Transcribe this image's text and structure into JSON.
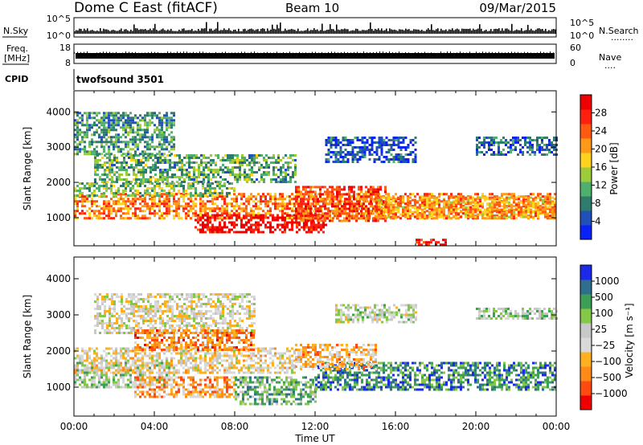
{
  "header": {
    "site": "Dome C East (fitACF)",
    "beam": "Beam 10",
    "date": "09/Mar/2015"
  },
  "top_panels": {
    "nsky": {
      "label": "N.Sky",
      "ticks": [
        "10^5",
        "10^0"
      ]
    },
    "nsearch": {
      "label": "N.Search",
      "dots": "........",
      "ticks": [
        "10^5",
        "10^0"
      ]
    },
    "freq": {
      "label_line1": "Freq.",
      "label_line2": "[MHz]",
      "ticks": [
        "18",
        "8"
      ]
    },
    "nave": {
      "label": "Nave",
      "dots": "....",
      "ticks": [
        "60",
        "0"
      ]
    },
    "cpid": {
      "label": "CPID",
      "value": "twofsound 3501"
    }
  },
  "colors": {
    "power_scale": [
      "#0a22f5",
      "#2050b8",
      "#2f7c6d",
      "#4fb06d",
      "#9ccc3c",
      "#ffd21f",
      "#ff9918",
      "#ff5a10",
      "#ff2010",
      "#ee0000"
    ],
    "velocity_scale": [
      "#ee0000",
      "#ff4a10",
      "#ff8a18",
      "#ffb020",
      "#d9d9d9",
      "#c8c8c8",
      "#84c84a",
      "#3d9e55",
      "#2f6e8c",
      "#1a2ae8"
    ]
  },
  "chart_data": [
    {
      "type": "heatmap",
      "name": "power",
      "ylabel": "Slant Range [km]",
      "ylim": [
        200,
        4600
      ],
      "yticks": [
        "1000",
        "2000",
        "3000",
        "4000"
      ],
      "xticks": [
        "00:00",
        "04:00",
        "08:00",
        "12:00",
        "16:00",
        "20:00",
        "00:00"
      ],
      "colorbar": {
        "label": "Power [dB]",
        "ticks": [
          "4",
          "8",
          "12",
          "16",
          "20",
          "24",
          "28"
        ]
      },
      "bands": [
        {
          "t0": 0,
          "t1": 24,
          "r0": 1000,
          "r1": 1700,
          "level": 0.7
        },
        {
          "t0": 6,
          "t1": 12.5,
          "r0": 600,
          "r1": 1100,
          "level": 0.95
        },
        {
          "t0": 11,
          "t1": 15.5,
          "r0": 900,
          "r1": 1900,
          "level": 0.8
        },
        {
          "t0": 15,
          "t1": 24,
          "r0": 1000,
          "r1": 1600,
          "level": 0.65
        },
        {
          "t0": 0,
          "t1": 8,
          "r0": 1600,
          "r1": 2000,
          "level": 0.4
        },
        {
          "t0": 1,
          "t1": 11,
          "r0": 2000,
          "r1": 2800,
          "level": 0.35
        },
        {
          "t0": 0,
          "t1": 5,
          "r0": 2800,
          "r1": 4000,
          "level": 0.3
        },
        {
          "t0": 12.5,
          "t1": 17,
          "r0": 2600,
          "r1": 3300,
          "level": 0.15
        },
        {
          "t0": 20,
          "t1": 24,
          "r0": 2800,
          "r1": 3300,
          "level": 0.2
        },
        {
          "t0": 17,
          "t1": 18.5,
          "r0": 250,
          "r1": 400,
          "level": 0.9
        }
      ]
    },
    {
      "type": "heatmap",
      "name": "velocity",
      "ylabel": "Slant Range [km]",
      "xlabel": "Time UT",
      "ylim": [
        200,
        4600
      ],
      "yticks": [
        "1000",
        "2000",
        "3000",
        "4000"
      ],
      "xticks": [
        "00:00",
        "04:00",
        "08:00",
        "12:00",
        "16:00",
        "20:00",
        "00:00"
      ],
      "colorbar": {
        "label": "Velocity [m s⁻¹]",
        "ticks": [
          "1000",
          "500",
          "100",
          "25",
          "−25",
          "−100",
          "−500",
          "−1000"
        ]
      },
      "bands": [
        {
          "t0": 0,
          "t1": 5,
          "r0": 1000,
          "r1": 1700,
          "level": 0.6
        },
        {
          "t0": 3,
          "t1": 8,
          "r0": 700,
          "r1": 1300,
          "level": 0.3
        },
        {
          "t0": 0,
          "t1": 11,
          "r0": 1400,
          "r1": 2100,
          "level": 0.45
        },
        {
          "t0": 8,
          "t1": 12,
          "r0": 500,
          "r1": 1300,
          "level": 0.7
        },
        {
          "t0": 12,
          "t1": 24,
          "r0": 900,
          "r1": 1700,
          "level": 0.8
        },
        {
          "t0": 11,
          "t1": 15,
          "r0": 1500,
          "r1": 2200,
          "level": 0.35
        },
        {
          "t0": 1,
          "t1": 9,
          "r0": 2500,
          "r1": 3600,
          "level": 0.48
        },
        {
          "t0": 3,
          "t1": 9,
          "r0": 2000,
          "r1": 2600,
          "level": 0.25
        },
        {
          "t0": 13,
          "t1": 17,
          "r0": 2800,
          "r1": 3300,
          "level": 0.55
        },
        {
          "t0": 20,
          "t1": 24,
          "r0": 2900,
          "r1": 3200,
          "level": 0.6
        }
      ]
    }
  ]
}
